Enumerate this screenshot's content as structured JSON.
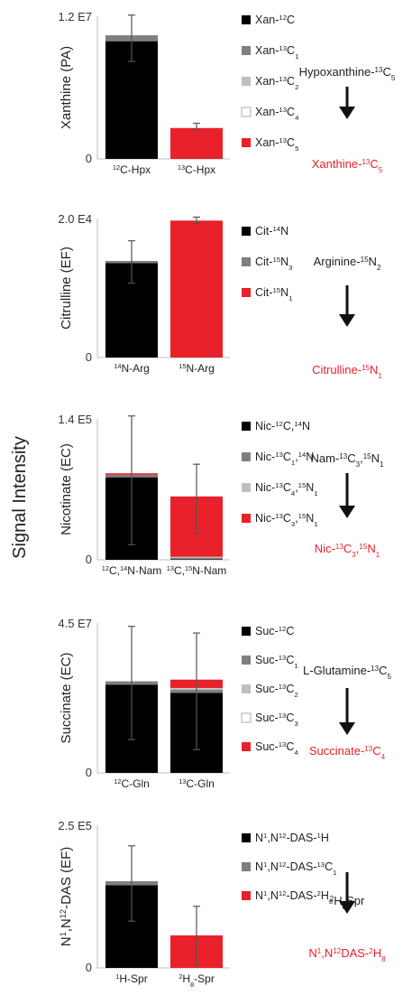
{
  "figure": {
    "ylabel_shared": "Signal Intensity"
  },
  "chart_data": [
    {
      "type": "bar",
      "stacked": true,
      "ylabel": "Xanthine (PA)",
      "ymax_label": "1.2 E7",
      "ymin_label": "0",
      "ylim": [
        0,
        12000000
      ],
      "categories": [
        "12C-Hpx",
        "13C-Hpx"
      ],
      "category_labels": [
        {
          "pre": "",
          "sup": "12",
          "post": "C-Hpx"
        },
        {
          "pre": "",
          "sup": "13",
          "post": "C-Hpx"
        }
      ],
      "series": [
        {
          "name": "Xan-12C",
          "label": [
            {
              "t": "Xan-"
            },
            {
              "t": "12",
              "k": "sup"
            },
            {
              "t": "C"
            }
          ],
          "color": "#000000",
          "values": [
            9900000,
            0
          ]
        },
        {
          "name": "Xan-13C1",
          "label": [
            {
              "t": "Xan-"
            },
            {
              "t": "13",
              "k": "sup"
            },
            {
              "t": "C"
            },
            {
              "t": "1",
              "k": "sub"
            }
          ],
          "color": "#7f7f7f",
          "values": [
            500000,
            0
          ]
        },
        {
          "name": "Xan-13C2",
          "label": [
            {
              "t": "Xan-"
            },
            {
              "t": "13",
              "k": "sup"
            },
            {
              "t": "C"
            },
            {
              "t": "2",
              "k": "sub"
            }
          ],
          "color": "#bfbfbf",
          "values": [
            0,
            0
          ]
        },
        {
          "name": "Xan-13C4",
          "label": [
            {
              "t": "Xan-"
            },
            {
              "t": "13",
              "k": "sup"
            },
            {
              "t": "C"
            },
            {
              "t": "4",
              "k": "sub"
            }
          ],
          "color": "#ffffff",
          "values": [
            0,
            0
          ]
        },
        {
          "name": "Xan-13C5",
          "label": [
            {
              "t": "Xan-"
            },
            {
              "t": "13",
              "k": "sup"
            },
            {
              "t": "C"
            },
            {
              "t": "5",
              "k": "sub"
            }
          ],
          "color": "#e8212b",
          "values": [
            0,
            2600000
          ]
        }
      ],
      "error_bars": [
        {
          "low": 8200000,
          "high": 12100000
        },
        {
          "low": 2400000,
          "high": 3000000
        }
      ],
      "pathway": {
        "substrate": [
          {
            "t": "Hypoxanthine-"
          },
          {
            "t": "13",
            "k": "sup"
          },
          {
            "t": "C"
          },
          {
            "t": "5",
            "k": "sub"
          }
        ],
        "product": [
          {
            "t": "Xanthine-"
          },
          {
            "t": "13",
            "k": "sup"
          },
          {
            "t": "C"
          },
          {
            "t": "5",
            "k": "sub"
          }
        ]
      }
    },
    {
      "type": "bar",
      "stacked": true,
      "ylabel": "Citrulline (EF)",
      "ymax_label": "2.0 E4",
      "ymin_label": "0",
      "ylim": [
        0,
        20000
      ],
      "categories": [
        "14N-Arg",
        "15N-Arg"
      ],
      "category_labels": [
        {
          "pre": "",
          "sup": "14",
          "post": "N-Arg"
        },
        {
          "pre": "",
          "sup": "15",
          "post": "N-Arg"
        }
      ],
      "series": [
        {
          "name": "Cit-14N",
          "label": [
            {
              "t": "Cit-"
            },
            {
              "t": "14",
              "k": "sup"
            },
            {
              "t": "N"
            }
          ],
          "color": "#000000",
          "values": [
            13600,
            0
          ]
        },
        {
          "name": "Cit-15N3",
          "label": [
            {
              "t": "Cit-"
            },
            {
              "t": "15",
              "k": "sup"
            },
            {
              "t": "N"
            },
            {
              "t": "3",
              "k": "sub"
            }
          ],
          "color": "#7f7f7f",
          "values": [
            300,
            0
          ]
        },
        {
          "name": "Cit-15N1",
          "label": [
            {
              "t": "Cit-"
            },
            {
              "t": "15",
              "k": "sup"
            },
            {
              "t": "N"
            },
            {
              "t": "1",
              "k": "sub"
            }
          ],
          "color": "#e8212b",
          "values": [
            0,
            19700
          ]
        }
      ],
      "error_bars": [
        {
          "low": 10700,
          "high": 16800
        },
        {
          "low": 19300,
          "high": 20200
        }
      ],
      "pathway": {
        "substrate": [
          {
            "t": "Arginine-"
          },
          {
            "t": "15",
            "k": "sup"
          },
          {
            "t": "N"
          },
          {
            "t": "2",
            "k": "sub"
          }
        ],
        "product": [
          {
            "t": "Citrulline-"
          },
          {
            "t": "15",
            "k": "sup"
          },
          {
            "t": "N"
          },
          {
            "t": "1",
            "k": "sub"
          }
        ]
      }
    },
    {
      "type": "bar",
      "stacked": true,
      "ylabel": "Nicotinate (EC)",
      "ymax_label": "1.4 E5",
      "ymin_label": "0",
      "ylim": [
        0,
        140000
      ],
      "categories": [
        "12C,14N-Nam",
        "13C,15N-Nam"
      ],
      "category_labels": [
        {
          "pre": "",
          "sup": "12",
          "post": "C,",
          "sup2": "14",
          "post2": "N-Nam"
        },
        {
          "pre": "",
          "sup": "13",
          "post": "C,",
          "sup2": "15",
          "post2": "N-Nam"
        }
      ],
      "series": [
        {
          "name": "Nic-12C,14N",
          "label": [
            {
              "t": "Nic-"
            },
            {
              "t": "12",
              "k": "sup"
            },
            {
              "t": "C,"
            },
            {
              "t": "14",
              "k": "sup"
            },
            {
              "t": "N"
            }
          ],
          "color": "#000000",
          "values": [
            82000,
            500
          ]
        },
        {
          "name": "Nic-13C1,14N",
          "label": [
            {
              "t": "Nic-"
            },
            {
              "t": "13",
              "k": "sup"
            },
            {
              "t": "C"
            },
            {
              "t": "1",
              "k": "sub"
            },
            {
              "t": ","
            },
            {
              "t": "14",
              "k": "sup"
            },
            {
              "t": "N"
            }
          ],
          "color": "#7f7f7f",
          "values": [
            2500,
            1500
          ]
        },
        {
          "name": "Nic-13C4,15N1",
          "label": [
            {
              "t": "Nic-"
            },
            {
              "t": "13",
              "k": "sup"
            },
            {
              "t": "C"
            },
            {
              "t": "4",
              "k": "sub"
            },
            {
              "t": ","
            },
            {
              "t": "15",
              "k": "sup"
            },
            {
              "t": "N"
            },
            {
              "t": "1",
              "k": "sub"
            }
          ],
          "color": "#bfbfbf",
          "values": [
            0,
            1000
          ]
        },
        {
          "name": "Nic-13C3,15N1",
          "label": [
            {
              "t": "Nic-"
            },
            {
              "t": "13",
              "k": "sup"
            },
            {
              "t": "C"
            },
            {
              "t": "3",
              "k": "sub"
            },
            {
              "t": ","
            },
            {
              "t": "15",
              "k": "sup"
            },
            {
              "t": "N"
            },
            {
              "t": "1",
              "k": "sub"
            }
          ],
          "color": "#e8212b",
          "values": [
            1500,
            60000
          ]
        }
      ],
      "error_bars": [
        {
          "low": 15000,
          "high": 143000
        },
        {
          "low": 27000,
          "high": 95000
        }
      ],
      "pathway": {
        "substrate": [
          {
            "t": "Nam-"
          },
          {
            "t": "13",
            "k": "sup"
          },
          {
            "t": "C"
          },
          {
            "t": "3",
            "k": "sub"
          },
          {
            "t": ","
          },
          {
            "t": "15",
            "k": "sup"
          },
          {
            "t": "N"
          },
          {
            "t": "1",
            "k": "sub"
          }
        ],
        "product": [
          {
            "t": "Nic-"
          },
          {
            "t": "13",
            "k": "sup"
          },
          {
            "t": "C"
          },
          {
            "t": "3",
            "k": "sub"
          },
          {
            "t": ","
          },
          {
            "t": "15",
            "k": "sup"
          },
          {
            "t": "N"
          },
          {
            "t": "1",
            "k": "sub"
          }
        ]
      }
    },
    {
      "type": "bar",
      "stacked": true,
      "ylabel": "Succinate (EC)",
      "ymax_label": "4.5 E7",
      "ymin_label": "0",
      "ylim": [
        0,
        45000000
      ],
      "categories": [
        "12C-Gln",
        "13C-Gln"
      ],
      "category_labels": [
        {
          "pre": "",
          "sup": "12",
          "post": "C-Gln"
        },
        {
          "pre": "",
          "sup": "13",
          "post": "C-Gln"
        }
      ],
      "series": [
        {
          "name": "Suc-12C",
          "label": [
            {
              "t": "Suc-"
            },
            {
              "t": "12",
              "k": "sup"
            },
            {
              "t": "C"
            }
          ],
          "color": "#000000",
          "values": [
            26500000,
            24000000
          ]
        },
        {
          "name": "Suc-13C1",
          "label": [
            {
              "t": "Suc-"
            },
            {
              "t": "13",
              "k": "sup"
            },
            {
              "t": "C"
            },
            {
              "t": "1",
              "k": "sub"
            }
          ],
          "color": "#7f7f7f",
          "values": [
            1000000,
            1000000
          ]
        },
        {
          "name": "Suc-13C2",
          "label": [
            {
              "t": "Suc-"
            },
            {
              "t": "13",
              "k": "sup"
            },
            {
              "t": "C"
            },
            {
              "t": "2",
              "k": "sub"
            }
          ],
          "color": "#bfbfbf",
          "values": [
            0,
            300000
          ]
        },
        {
          "name": "Suc-13C3",
          "label": [
            {
              "t": "Suc-"
            },
            {
              "t": "13",
              "k": "sup"
            },
            {
              "t": "C"
            },
            {
              "t": "3",
              "k": "sub"
            }
          ],
          "color": "#ffffff",
          "values": [
            0,
            200000
          ]
        },
        {
          "name": "Suc-13C4",
          "label": [
            {
              "t": "Suc-"
            },
            {
              "t": "13",
              "k": "sup"
            },
            {
              "t": "C"
            },
            {
              "t": "4",
              "k": "sub"
            }
          ],
          "color": "#e8212b",
          "values": [
            0,
            2500000
          ]
        }
      ],
      "error_bars": [
        {
          "low": 10000000,
          "high": 44000000
        },
        {
          "low": 7000000,
          "high": 42000000
        }
      ],
      "pathway": {
        "substrate": [
          {
            "t": "L-Glutamine-"
          },
          {
            "t": "13",
            "k": "sup"
          },
          {
            "t": "C"
          },
          {
            "t": "5",
            "k": "sub"
          }
        ],
        "product": [
          {
            "t": "Succinate-"
          },
          {
            "t": "13",
            "k": "sup"
          },
          {
            "t": "C"
          },
          {
            "t": "4",
            "k": "sub"
          }
        ]
      }
    },
    {
      "type": "bar",
      "stacked": true,
      "ylabel": "N1,N12-DAS (EF)",
      "ylabel_parts": [
        {
          "t": "N"
        },
        {
          "t": "1",
          "k": "sup"
        },
        {
          "t": ",N"
        },
        {
          "t": "12",
          "k": "sup"
        },
        {
          "t": "-DAS (EF)"
        }
      ],
      "ymax_label": "2.5 E5",
      "ymin_label": "0",
      "ylim": [
        0,
        250000
      ],
      "categories": [
        "1H-Spr",
        "2H8-Spr"
      ],
      "category_labels": [
        {
          "pre": "",
          "sup": "1",
          "post": "H-Spr"
        },
        {
          "pre": "",
          "sup": "2",
          "post": "H",
          "sub": "8",
          "post2": "-Spr"
        }
      ],
      "series": [
        {
          "name": "N1,N12-DAS-1H",
          "label": [
            {
              "t": "N"
            },
            {
              "t": "1",
              "k": "sup"
            },
            {
              "t": ",N"
            },
            {
              "t": "12",
              "k": "sup"
            },
            {
              "t": "-DAS-"
            },
            {
              "t": "1",
              "k": "sup"
            },
            {
              "t": "H"
            }
          ],
          "color": "#000000",
          "values": [
            145000,
            0
          ]
        },
        {
          "name": "N1,N12-DAS-13C1",
          "label": [
            {
              "t": "N"
            },
            {
              "t": "1",
              "k": "sup"
            },
            {
              "t": ",N"
            },
            {
              "t": "12",
              "k": "sup"
            },
            {
              "t": "-DAS-"
            },
            {
              "t": "13",
              "k": "sup"
            },
            {
              "t": "C"
            },
            {
              "t": "1",
              "k": "sub"
            }
          ],
          "color": "#7f7f7f",
          "values": [
            7000,
            0
          ]
        },
        {
          "name": "N1,N12-DAS-2H8",
          "label": [
            {
              "t": "N"
            },
            {
              "t": "1",
              "k": "sup"
            },
            {
              "t": ",N"
            },
            {
              "t": "12",
              "k": "sup"
            },
            {
              "t": "-DAS-"
            },
            {
              "t": "2",
              "k": "sup"
            },
            {
              "t": "H"
            },
            {
              "t": "8",
              "k": "sub"
            }
          ],
          "color": "#e8212b",
          "values": [
            0,
            57000
          ]
        }
      ],
      "error_bars": [
        {
          "low": 82000,
          "high": 214000
        },
        {
          "low": 5000,
          "high": 108000
        }
      ],
      "pathway": {
        "substrate": [
          {
            "t": "2",
            "k": "sup"
          },
          {
            "t": "H"
          },
          {
            "t": "8",
            "k": "sub"
          },
          {
            "t": "Spr"
          }
        ],
        "product": [
          {
            "t": "N"
          },
          {
            "t": "1",
            "k": "sup"
          },
          {
            "t": ",N"
          },
          {
            "t": "12",
            "k": "sup"
          },
          {
            "t": "DAS-"
          },
          {
            "t": "2",
            "k": "sup"
          },
          {
            "t": "H"
          },
          {
            "t": "8",
            "k": "sub"
          }
        ]
      }
    }
  ]
}
